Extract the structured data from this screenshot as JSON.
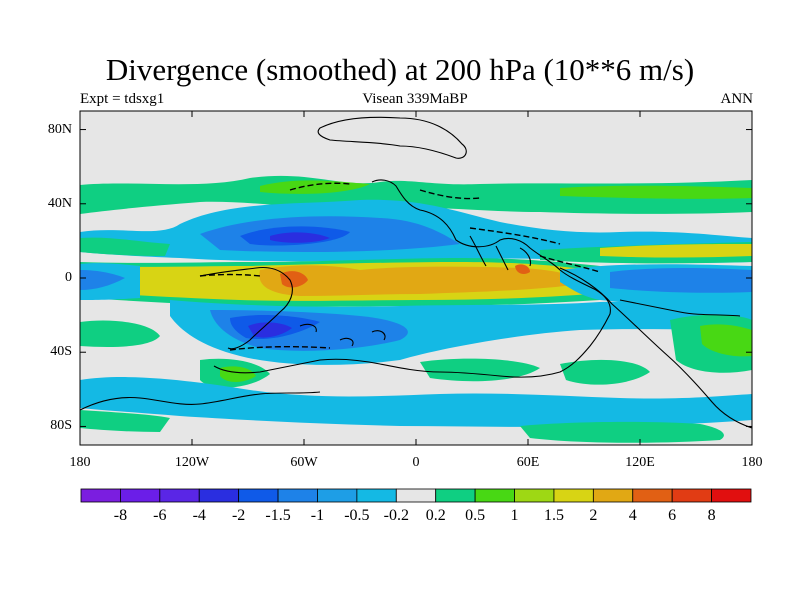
{
  "title": "Divergence (smoothed) at 200 hPa (10**6 m/s)",
  "subtitle_left": "Expt = tdsxg1",
  "subtitle_center": "Visean 339MaBP",
  "subtitle_right": "ANN",
  "map": {
    "lon_range": [
      -180,
      180
    ],
    "lat_range": [
      -90,
      90
    ],
    "lat_ticks": [
      {
        "value": 80,
        "label": "80N"
      },
      {
        "value": 40,
        "label": "40N"
      },
      {
        "value": 0,
        "label": "0"
      },
      {
        "value": -40,
        "label": "40S"
      },
      {
        "value": -80,
        "label": "80S"
      }
    ],
    "lon_ticks": [
      {
        "value": -180,
        "label": "180"
      },
      {
        "value": -120,
        "label": "120W"
      },
      {
        "value": -60,
        "label": "60W"
      },
      {
        "value": 0,
        "label": "0"
      },
      {
        "value": 60,
        "label": "60E"
      },
      {
        "value": 120,
        "label": "120E"
      },
      {
        "value": 180,
        "label": "180"
      }
    ]
  },
  "colorbar": {
    "colors": [
      "#7b1ee0",
      "#6b1ee8",
      "#5a26e6",
      "#2a2ee0",
      "#0f5ae8",
      "#1e82e8",
      "#1e9ee6",
      "#14b9e4",
      "#e6e6e6",
      "#0fcf82",
      "#48d814",
      "#9ed814",
      "#d8d414",
      "#e1a814",
      "#e16014",
      "#e13c14",
      "#e10f0f"
    ],
    "labels": [
      "-8",
      "-6",
      "-4",
      "-2",
      "-1.5",
      "-1",
      "-0.5",
      "-0.2",
      "0.2",
      "0.5",
      "1",
      "1.5",
      "2",
      "4",
      "6",
      "8"
    ]
  }
}
